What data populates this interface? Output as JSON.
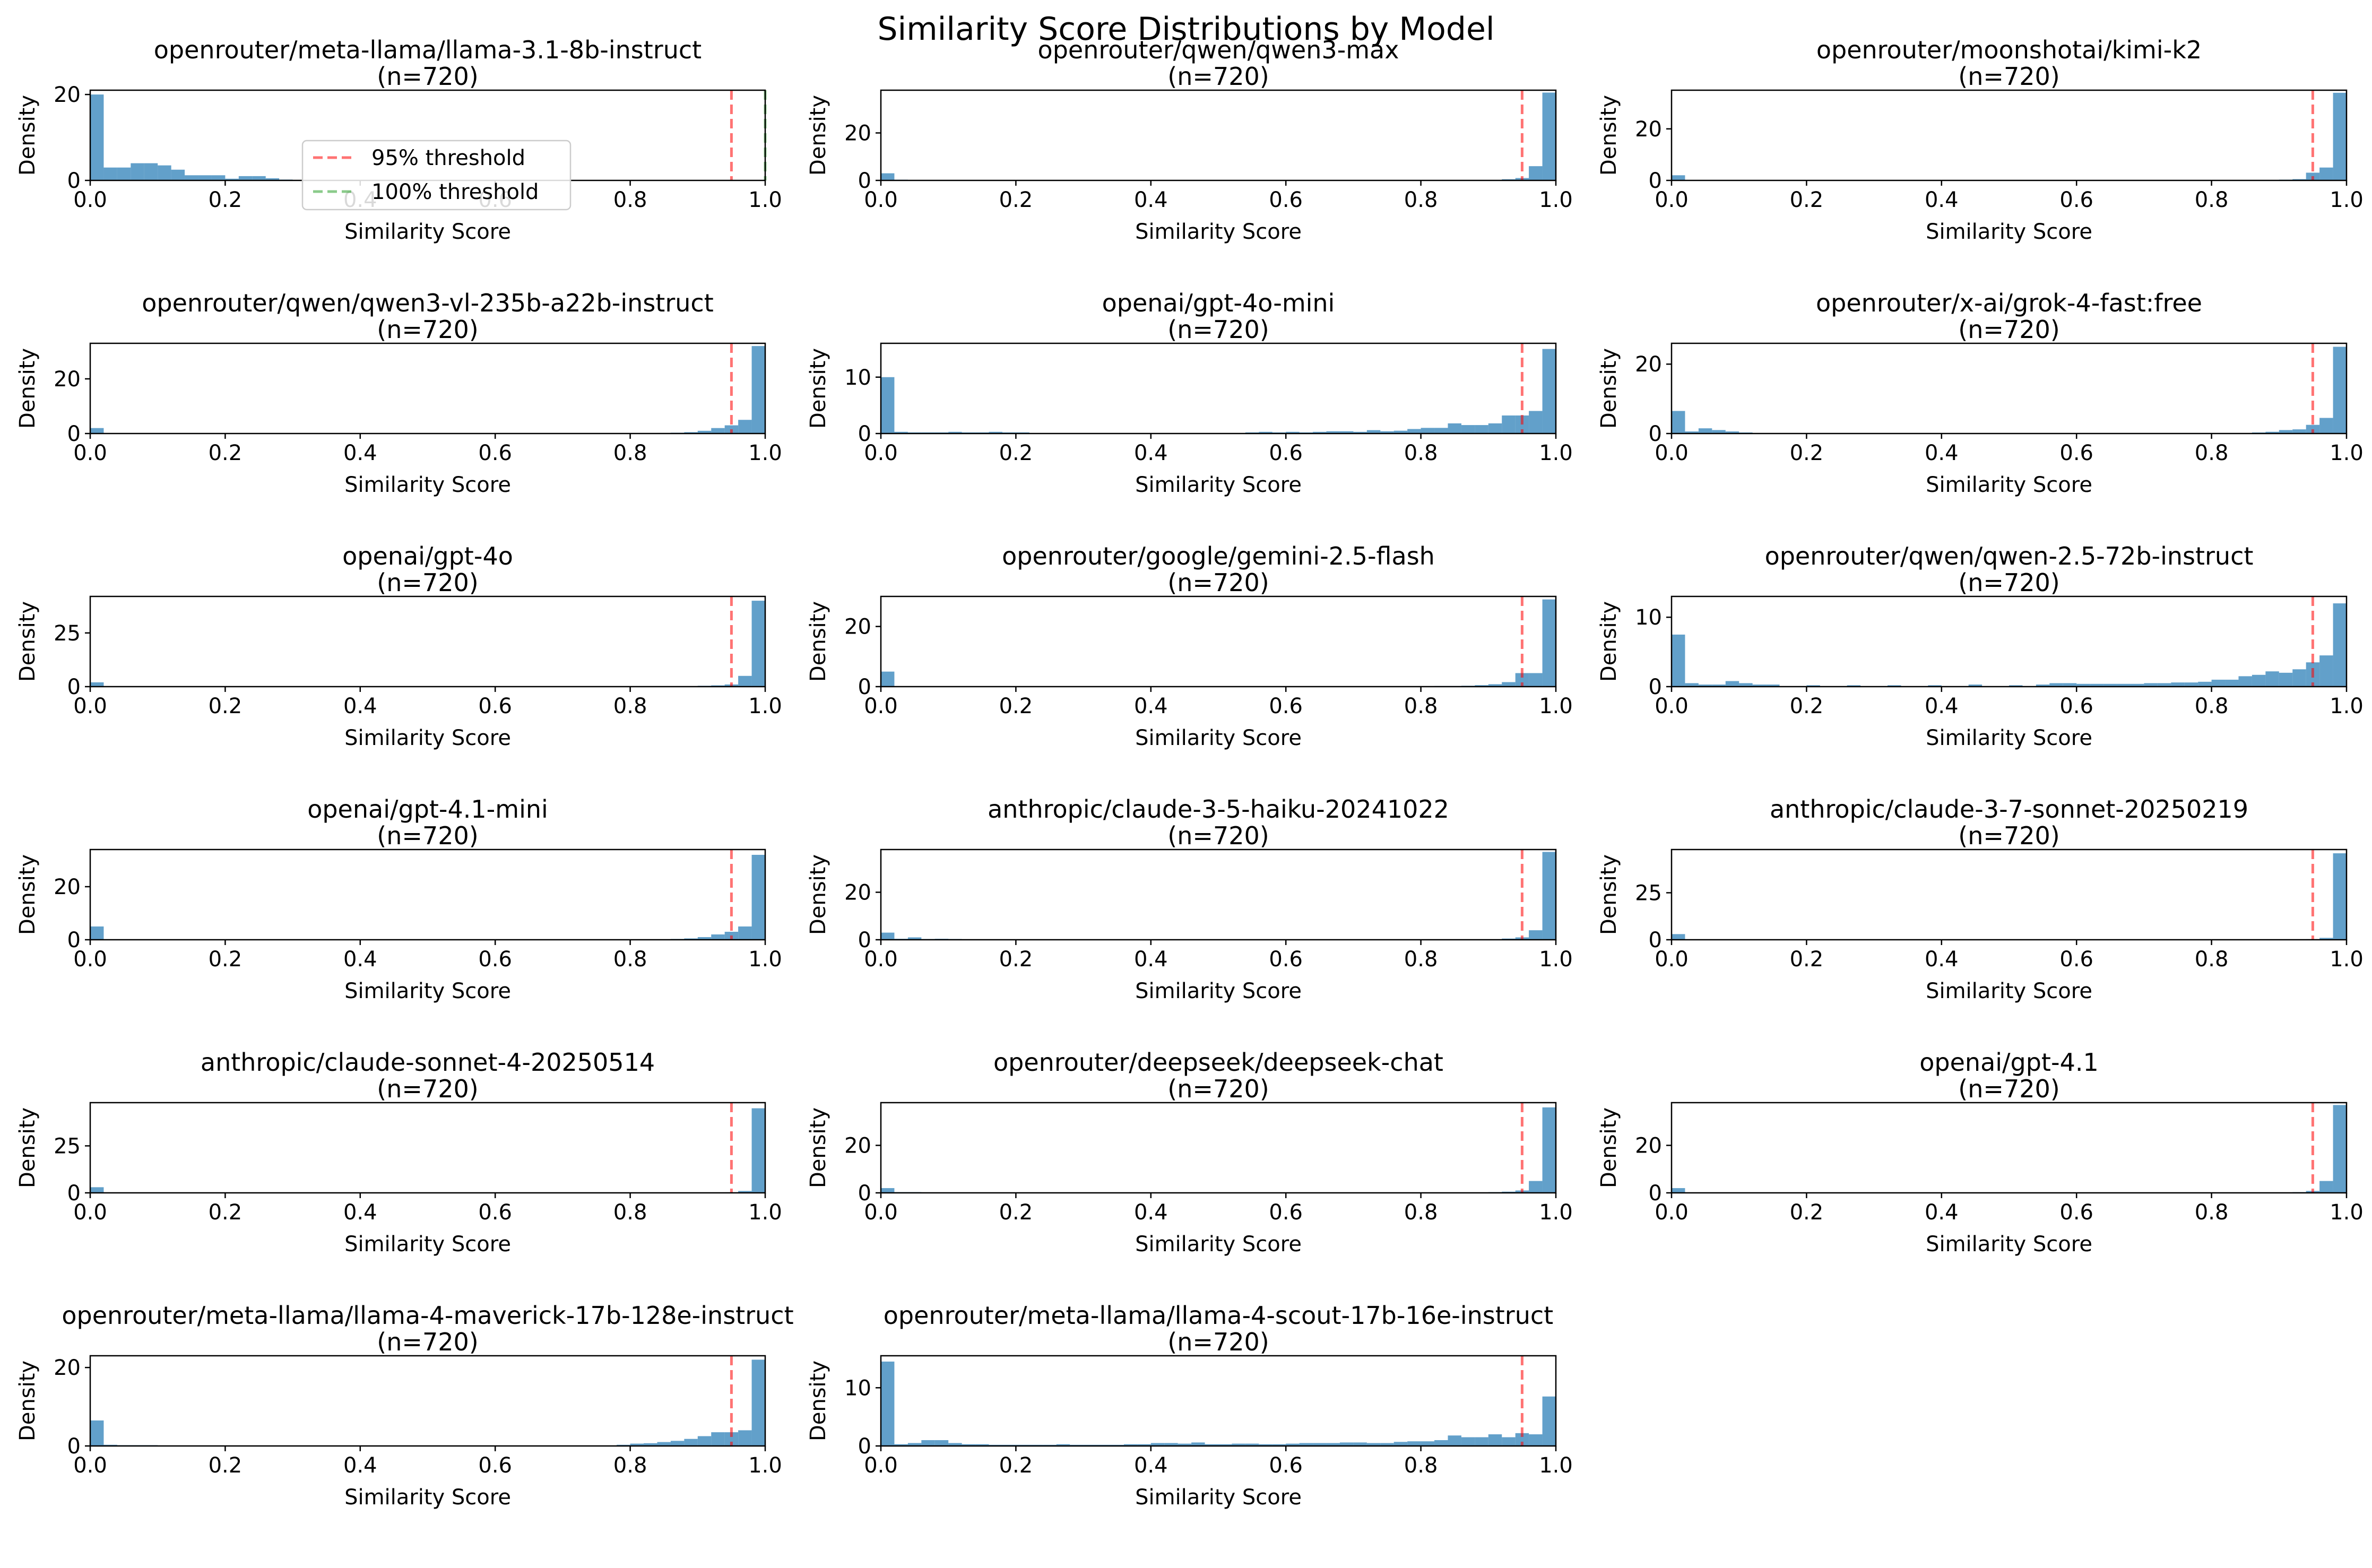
{
  "figure": {
    "title": "Similarity Score Distributions by Model",
    "xlabel": "Similarity Score",
    "ylabel": "Density",
    "xticks": [
      "0.0",
      "0.2",
      "0.4",
      "0.6",
      "0.8",
      "1.0"
    ],
    "bar_color": "#1f77b4",
    "threshold_95_color": "#ff0000",
    "threshold_100_color": "#2ca02c",
    "legend": {
      "placement": "upper-center of first subplot",
      "items": [
        {
          "label": "95% threshold",
          "color": "#ff0000",
          "style": "dashed"
        },
        {
          "label": "100% threshold",
          "color": "#2ca02c",
          "style": "dashed"
        }
      ]
    }
  },
  "chart_data": [
    {
      "type": "bar",
      "title": "openrouter/meta-llama/llama-3.1-8b-instruct",
      "subtitle": "(n=720)",
      "xlim": [
        0,
        1
      ],
      "ylim": [
        0,
        21
      ],
      "yticks": [
        0,
        20
      ],
      "thresholds": [
        0.95,
        1.0
      ],
      "bins_x": [
        0.01,
        0.03,
        0.05,
        0.07,
        0.09,
        0.11,
        0.13,
        0.15,
        0.17,
        0.19,
        0.21,
        0.23,
        0.25,
        0.27,
        0.29,
        0.31,
        0.33
      ],
      "values": [
        20,
        3,
        3,
        4,
        4,
        3.5,
        2.5,
        1.2,
        1.2,
        1.2,
        0.4,
        1.0,
        1.0,
        0.5,
        0.2,
        0.1,
        0.1
      ]
    },
    {
      "type": "bar",
      "title": "openrouter/qwen/qwen3-max",
      "subtitle": "(n=720)",
      "xlim": [
        0,
        1
      ],
      "ylim": [
        0,
        38
      ],
      "yticks": [
        0,
        20
      ],
      "thresholds": [
        0.95
      ],
      "bins_x": [
        0.01,
        0.03,
        0.93,
        0.95,
        0.97,
        0.99
      ],
      "values": [
        3,
        0.3,
        0.5,
        1,
        6,
        37
      ]
    },
    {
      "type": "bar",
      "title": "openrouter/moonshotai/kimi-k2",
      "subtitle": "(n=720)",
      "xlim": [
        0,
        1
      ],
      "ylim": [
        0,
        35
      ],
      "yticks": [
        0,
        20
      ],
      "thresholds": [
        0.95
      ],
      "bins_x": [
        0.01,
        0.91,
        0.93,
        0.95,
        0.97,
        0.99
      ],
      "values": [
        2,
        0.3,
        0.5,
        3,
        5,
        34
      ]
    },
    {
      "type": "bar",
      "title": "openrouter/qwen/qwen3-vl-235b-a22b-instruct",
      "subtitle": "(n=720)",
      "xlim": [
        0,
        1
      ],
      "ylim": [
        0,
        33
      ],
      "yticks": [
        0,
        20
      ],
      "thresholds": [
        0.95
      ],
      "bins_x": [
        0.01,
        0.85,
        0.87,
        0.89,
        0.91,
        0.93,
        0.95,
        0.97,
        0.99
      ],
      "values": [
        2,
        0.2,
        0.3,
        0.5,
        1,
        2,
        3,
        5,
        32
      ]
    },
    {
      "type": "bar",
      "title": "openai/gpt-4o-mini",
      "subtitle": "(n=720)",
      "xlim": [
        0,
        1
      ],
      "ylim": [
        0,
        16
      ],
      "yticks": [
        0,
        10
      ],
      "thresholds": [
        0.95
      ],
      "bins_x": [
        0.01,
        0.03,
        0.05,
        0.07,
        0.09,
        0.11,
        0.13,
        0.15,
        0.17,
        0.19,
        0.21,
        0.55,
        0.57,
        0.59,
        0.61,
        0.63,
        0.65,
        0.67,
        0.69,
        0.71,
        0.73,
        0.75,
        0.77,
        0.79,
        0.81,
        0.83,
        0.85,
        0.87,
        0.89,
        0.91,
        0.93,
        0.95,
        0.97,
        0.99
      ],
      "values": [
        10,
        0.3,
        0.2,
        0.2,
        0.2,
        0.3,
        0.2,
        0.2,
        0.3,
        0.2,
        0.2,
        0.2,
        0.3,
        0.2,
        0.3,
        0.2,
        0.3,
        0.4,
        0.4,
        0.3,
        0.6,
        0.4,
        0.5,
        0.8,
        1.0,
        1.0,
        1.8,
        1.5,
        1.5,
        1.8,
        3.2,
        3.2,
        4.0,
        15
      ]
    },
    {
      "type": "bar",
      "title": "openrouter/x-ai/grok-4-fast:free",
      "subtitle": "(n=720)",
      "xlim": [
        0,
        1
      ],
      "ylim": [
        0,
        26
      ],
      "yticks": [
        0,
        20
      ],
      "thresholds": [
        0.95
      ],
      "bins_x": [
        0.01,
        0.03,
        0.05,
        0.07,
        0.09,
        0.11,
        0.87,
        0.89,
        0.91,
        0.93,
        0.95,
        0.97,
        0.99
      ],
      "values": [
        6.5,
        0.6,
        1.5,
        1.0,
        0.6,
        0.3,
        0.3,
        0.5,
        1.0,
        1.2,
        2.5,
        4.5,
        25
      ]
    },
    {
      "type": "bar",
      "title": "openai/gpt-4o",
      "subtitle": "(n=720)",
      "xlim": [
        0,
        1
      ],
      "ylim": [
        0,
        42
      ],
      "yticks": [
        0,
        25
      ],
      "thresholds": [
        0.95
      ],
      "bins_x": [
        0.01,
        0.91,
        0.93,
        0.95,
        0.97,
        0.99
      ],
      "values": [
        2,
        0.4,
        0.6,
        1,
        5,
        40
      ]
    },
    {
      "type": "bar",
      "title": "openrouter/google/gemini-2.5-flash",
      "subtitle": "(n=720)",
      "xlim": [
        0,
        1
      ],
      "ylim": [
        0,
        30
      ],
      "yticks": [
        0,
        20
      ],
      "thresholds": [
        0.95
      ],
      "bins_x": [
        0.01,
        0.83,
        0.85,
        0.87,
        0.89,
        0.91,
        0.93,
        0.95,
        0.97,
        0.99
      ],
      "values": [
        5,
        0.2,
        0.2,
        0.3,
        0.5,
        0.8,
        1.5,
        4.5,
        4.5,
        29
      ]
    },
    {
      "type": "bar",
      "title": "openrouter/qwen/qwen-2.5-72b-instruct",
      "subtitle": "(n=720)",
      "xlim": [
        0,
        1
      ],
      "ylim": [
        0,
        13
      ],
      "yticks": [
        0,
        10
      ],
      "thresholds": [
        0.95
      ],
      "bins_x": [
        0.01,
        0.03,
        0.05,
        0.07,
        0.09,
        0.11,
        0.13,
        0.15,
        0.21,
        0.27,
        0.33,
        0.39,
        0.45,
        0.51,
        0.55,
        0.57,
        0.59,
        0.61,
        0.63,
        0.65,
        0.67,
        0.69,
        0.71,
        0.73,
        0.75,
        0.77,
        0.79,
        0.81,
        0.83,
        0.85,
        0.87,
        0.89,
        0.91,
        0.93,
        0.95,
        0.97,
        0.99
      ],
      "values": [
        7.5,
        0.5,
        0.3,
        0.3,
        0.8,
        0.5,
        0.3,
        0.3,
        0.2,
        0.2,
        0.2,
        0.2,
        0.3,
        0.2,
        0.3,
        0.5,
        0.5,
        0.4,
        0.4,
        0.4,
        0.4,
        0.4,
        0.5,
        0.5,
        0.6,
        0.6,
        0.7,
        1.0,
        1.0,
        1.5,
        1.7,
        2.2,
        2.0,
        2.5,
        3.5,
        4.5,
        12
      ]
    },
    {
      "type": "bar",
      "title": "openai/gpt-4.1-mini",
      "subtitle": "(n=720)",
      "xlim": [
        0,
        1
      ],
      "ylim": [
        0,
        34
      ],
      "yticks": [
        0,
        20
      ],
      "thresholds": [
        0.95
      ],
      "bins_x": [
        0.01,
        0.87,
        0.89,
        0.91,
        0.93,
        0.95,
        0.97,
        0.99
      ],
      "values": [
        5,
        0.3,
        0.5,
        1,
        2,
        3,
        5,
        32
      ]
    },
    {
      "type": "bar",
      "title": "anthropic/claude-3-5-haiku-20241022",
      "subtitle": "(n=720)",
      "xlim": [
        0,
        1
      ],
      "ylim": [
        0,
        38
      ],
      "yticks": [
        0,
        20
      ],
      "thresholds": [
        0.95
      ],
      "bins_x": [
        0.01,
        0.03,
        0.05,
        0.07,
        0.09,
        0.11,
        0.93,
        0.95,
        0.97,
        0.99
      ],
      "values": [
        3,
        0.4,
        1,
        0.3,
        0.4,
        0.3,
        0.5,
        1,
        4,
        37
      ]
    },
    {
      "type": "bar",
      "title": "anthropic/claude-3-7-sonnet-20250219",
      "subtitle": "(n=720)",
      "xlim": [
        0,
        1
      ],
      "ylim": [
        0,
        48
      ],
      "yticks": [
        0,
        25
      ],
      "thresholds": [
        0.95
      ],
      "bins_x": [
        0.01,
        0.95,
        0.97,
        0.99
      ],
      "values": [
        3,
        0.3,
        1,
        46
      ]
    },
    {
      "type": "bar",
      "title": "anthropic/claude-sonnet-4-20250514",
      "subtitle": "(n=720)",
      "xlim": [
        0,
        1
      ],
      "ylim": [
        0,
        48
      ],
      "yticks": [
        0,
        25
      ],
      "thresholds": [
        0.95
      ],
      "bins_x": [
        0.01,
        0.95,
        0.97,
        0.99
      ],
      "values": [
        3,
        0.3,
        1,
        45
      ]
    },
    {
      "type": "bar",
      "title": "openrouter/deepseek/deepseek-chat",
      "subtitle": "(n=720)",
      "xlim": [
        0,
        1
      ],
      "ylim": [
        0,
        38
      ],
      "yticks": [
        0,
        20
      ],
      "thresholds": [
        0.95
      ],
      "bins_x": [
        0.01,
        0.03,
        0.05,
        0.91,
        0.93,
        0.95,
        0.97,
        0.99
      ],
      "values": [
        2,
        0.3,
        0.3,
        0.3,
        0.5,
        1,
        5,
        36
      ]
    },
    {
      "type": "bar",
      "title": "openai/gpt-4.1",
      "subtitle": "(n=720)",
      "xlim": [
        0,
        1
      ],
      "ylim": [
        0,
        38
      ],
      "yticks": [
        0,
        20
      ],
      "thresholds": [
        0.95
      ],
      "bins_x": [
        0.01,
        0.93,
        0.95,
        0.97,
        0.99
      ],
      "values": [
        2,
        0.3,
        0.8,
        5,
        37
      ]
    },
    {
      "type": "bar",
      "title": "openrouter/meta-llama/llama-4-maverick-17b-128e-instruct",
      "subtitle": "(n=720)",
      "xlim": [
        0,
        1
      ],
      "ylim": [
        0,
        23
      ],
      "yticks": [
        0,
        20
      ],
      "thresholds": [
        0.95
      ],
      "bins_x": [
        0.01,
        0.03,
        0.05,
        0.07,
        0.09,
        0.79,
        0.81,
        0.83,
        0.85,
        0.87,
        0.89,
        0.91,
        0.93,
        0.95,
        0.97,
        0.99
      ],
      "values": [
        6.5,
        0.3,
        0.2,
        0.2,
        0.2,
        0.3,
        0.6,
        0.7,
        1.0,
        1.3,
        1.8,
        2.5,
        3.5,
        3.5,
        4.0,
        22
      ]
    },
    {
      "type": "bar",
      "title": "openrouter/meta-llama/llama-4-scout-17b-16e-instruct",
      "subtitle": "(n=720)",
      "xlim": [
        0,
        1
      ],
      "ylim": [
        0,
        15.5
      ],
      "yticks": [
        0,
        10
      ],
      "thresholds": [
        0.95
      ],
      "bins_x": [
        0.01,
        0.03,
        0.05,
        0.07,
        0.09,
        0.11,
        0.13,
        0.15,
        0.17,
        0.19,
        0.21,
        0.23,
        0.25,
        0.27,
        0.29,
        0.31,
        0.33,
        0.35,
        0.37,
        0.39,
        0.41,
        0.43,
        0.45,
        0.47,
        0.49,
        0.51,
        0.53,
        0.55,
        0.57,
        0.59,
        0.61,
        0.63,
        0.65,
        0.67,
        0.69,
        0.71,
        0.73,
        0.75,
        0.77,
        0.79,
        0.81,
        0.83,
        0.85,
        0.87,
        0.89,
        0.91,
        0.93,
        0.95,
        0.97,
        0.99
      ],
      "values": [
        14.5,
        0.3,
        0.5,
        1.0,
        1.0,
        0.5,
        0.3,
        0.3,
        0.2,
        0.2,
        0.2,
        0.2,
        0.2,
        0.3,
        0.2,
        0.2,
        0.2,
        0.2,
        0.3,
        0.3,
        0.5,
        0.5,
        0.4,
        0.6,
        0.3,
        0.3,
        0.4,
        0.4,
        0.3,
        0.3,
        0.4,
        0.5,
        0.5,
        0.5,
        0.6,
        0.6,
        0.5,
        0.5,
        0.7,
        0.8,
        0.8,
        1.0,
        1.8,
        1.5,
        1.5,
        2.0,
        1.5,
        2.2,
        2.0,
        8.5
      ]
    }
  ]
}
